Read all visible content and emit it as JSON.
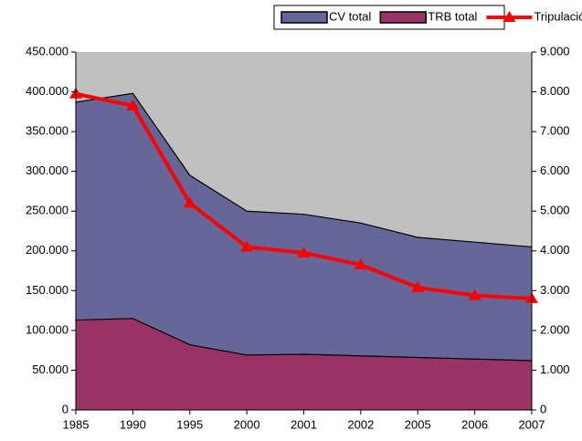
{
  "chart_data": {
    "type": "area",
    "categories": [
      "1985",
      "1990",
      "1995",
      "2000",
      "2001",
      "2002",
      "2005",
      "2006",
      "2007"
    ],
    "series": [
      {
        "name": "CV total",
        "type": "area",
        "color": "#666699",
        "values": [
          387000,
          398000,
          295000,
          250000,
          246000,
          235000,
          217000,
          211000,
          205000
        ]
      },
      {
        "name": "TRB total",
        "type": "area",
        "color": "#993366",
        "values": [
          113000,
          115000,
          82000,
          69000,
          70000,
          68000,
          66000,
          64000,
          62000
        ]
      },
      {
        "name": "Tripulación",
        "type": "line",
        "axis": "y2",
        "color": "#ff0000",
        "values": [
          7950,
          7650,
          5200,
          4100,
          3950,
          3650,
          3080,
          2880,
          2800
        ]
      }
    ],
    "ylim": [
      0,
      450000
    ],
    "yticks": [
      0,
      {
        "value": 50000,
        "label": "50.000"
      },
      {
        "value": 100000,
        "label": "100.000"
      },
      {
        "value": 150000,
        "label": "150.000"
      },
      {
        "value": 200000,
        "label": "200.000"
      },
      {
        "value": 250000,
        "label": "250.000"
      },
      {
        "value": 300000,
        "label": "300.000"
      },
      {
        "value": 350000,
        "label": "350.000"
      },
      {
        "value": 400000,
        "label": "400.000"
      },
      {
        "value": 450000,
        "label": "450.000"
      }
    ],
    "y2lim": [
      0,
      9000
    ],
    "y2ticks": [
      0,
      {
        "value": 1000,
        "label": "1.000"
      },
      {
        "value": 2000,
        "label": "2.000"
      },
      {
        "value": 3000,
        "label": "3.000"
      },
      {
        "value": 4000,
        "label": "4.000"
      },
      {
        "value": 5000,
        "label": "5.000"
      },
      {
        "value": 6000,
        "label": "6.000"
      },
      {
        "value": 7000,
        "label": "7.000"
      },
      {
        "value": 8000,
        "label": "8.000"
      },
      {
        "value": 9000,
        "label": "9.000"
      }
    ],
    "plot_background": "#c0c0c0",
    "legend": "top"
  }
}
